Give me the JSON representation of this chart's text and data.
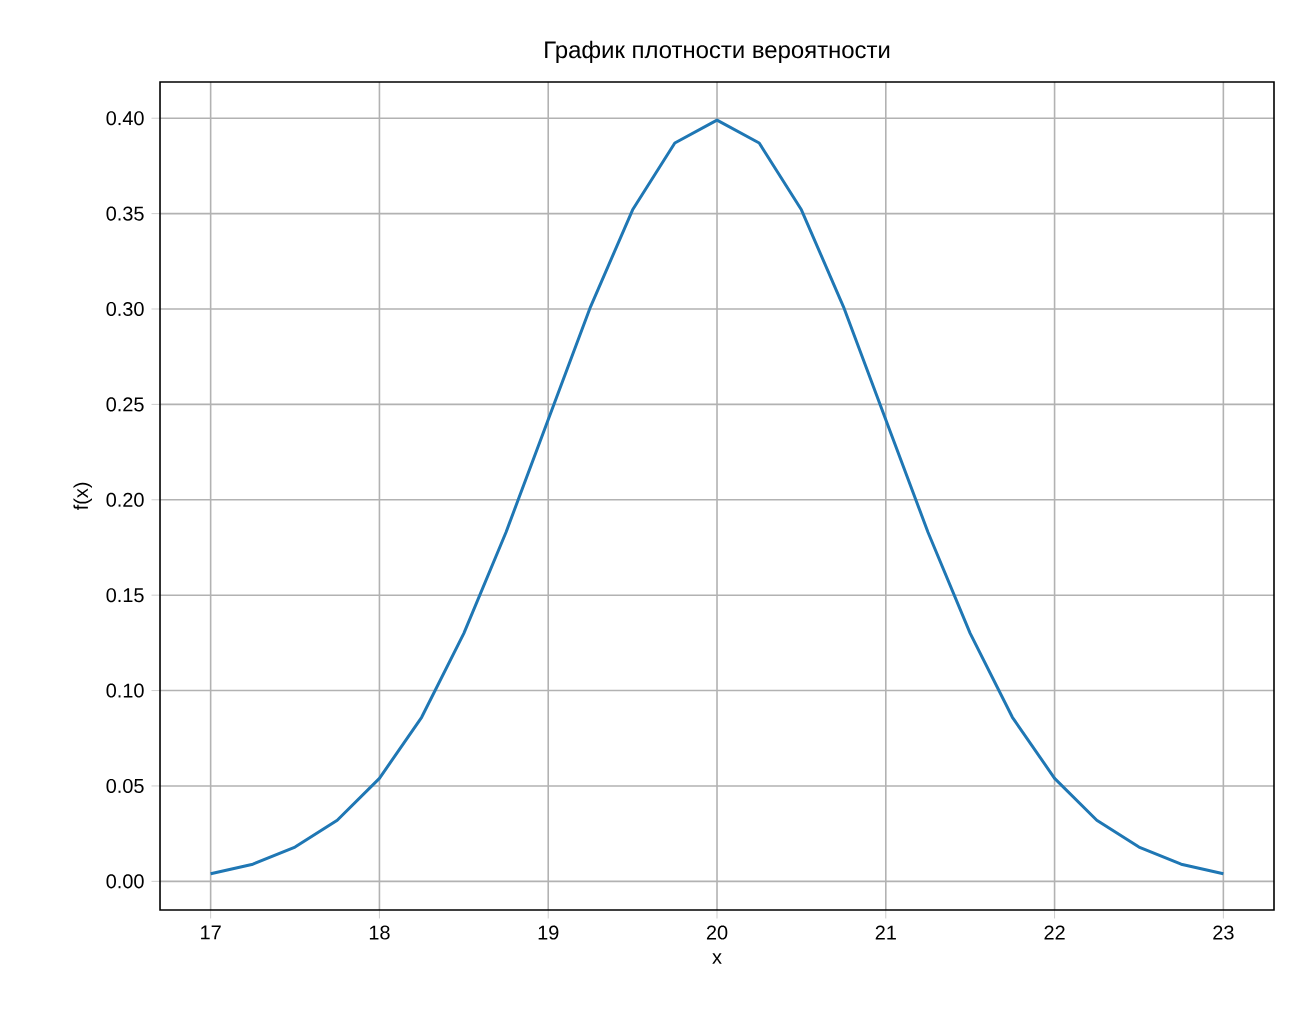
{
  "chart_data": {
    "type": "line",
    "title": "График плотности вероятности",
    "xlabel": "x",
    "ylabel": "f(x)",
    "x": [
      17,
      17.25,
      17.5,
      17.75,
      18,
      18.25,
      18.5,
      18.75,
      19,
      19.25,
      19.5,
      19.75,
      20,
      20.25,
      20.5,
      20.75,
      21,
      21.25,
      21.5,
      21.75,
      22,
      22.25,
      22.5,
      22.75,
      23
    ],
    "series": [
      {
        "color": "#1f77b4",
        "values": [
          0.004,
          0.009,
          0.018,
          0.032,
          0.054,
          0.086,
          0.13,
          0.183,
          0.242,
          0.301,
          0.352,
          0.387,
          0.399,
          0.387,
          0.352,
          0.301,
          0.242,
          0.183,
          0.13,
          0.086,
          0.054,
          0.032,
          0.018,
          0.009,
          0.004
        ]
      }
    ],
    "xlim": [
      16.7,
      23.3
    ],
    "ylim": [
      -0.015,
      0.419
    ],
    "xticks": [
      17,
      18,
      19,
      20,
      21,
      22,
      23
    ],
    "yticks": [
      {
        "value": 0,
        "label": "0.00"
      },
      {
        "value": 0.05,
        "label": "0.05"
      },
      {
        "value": 0.1,
        "label": "0.10"
      },
      {
        "value": 0.15,
        "label": "0.15"
      },
      {
        "value": 0.2,
        "label": "0.20"
      },
      {
        "value": 0.25,
        "label": "0.25"
      },
      {
        "value": 0.3,
        "label": "0.30"
      },
      {
        "value": 0.35,
        "label": "0.35"
      },
      {
        "value": 0.4,
        "label": "0.40"
      }
    ],
    "grid": true,
    "marker": "none",
    "line_style": "solid"
  }
}
